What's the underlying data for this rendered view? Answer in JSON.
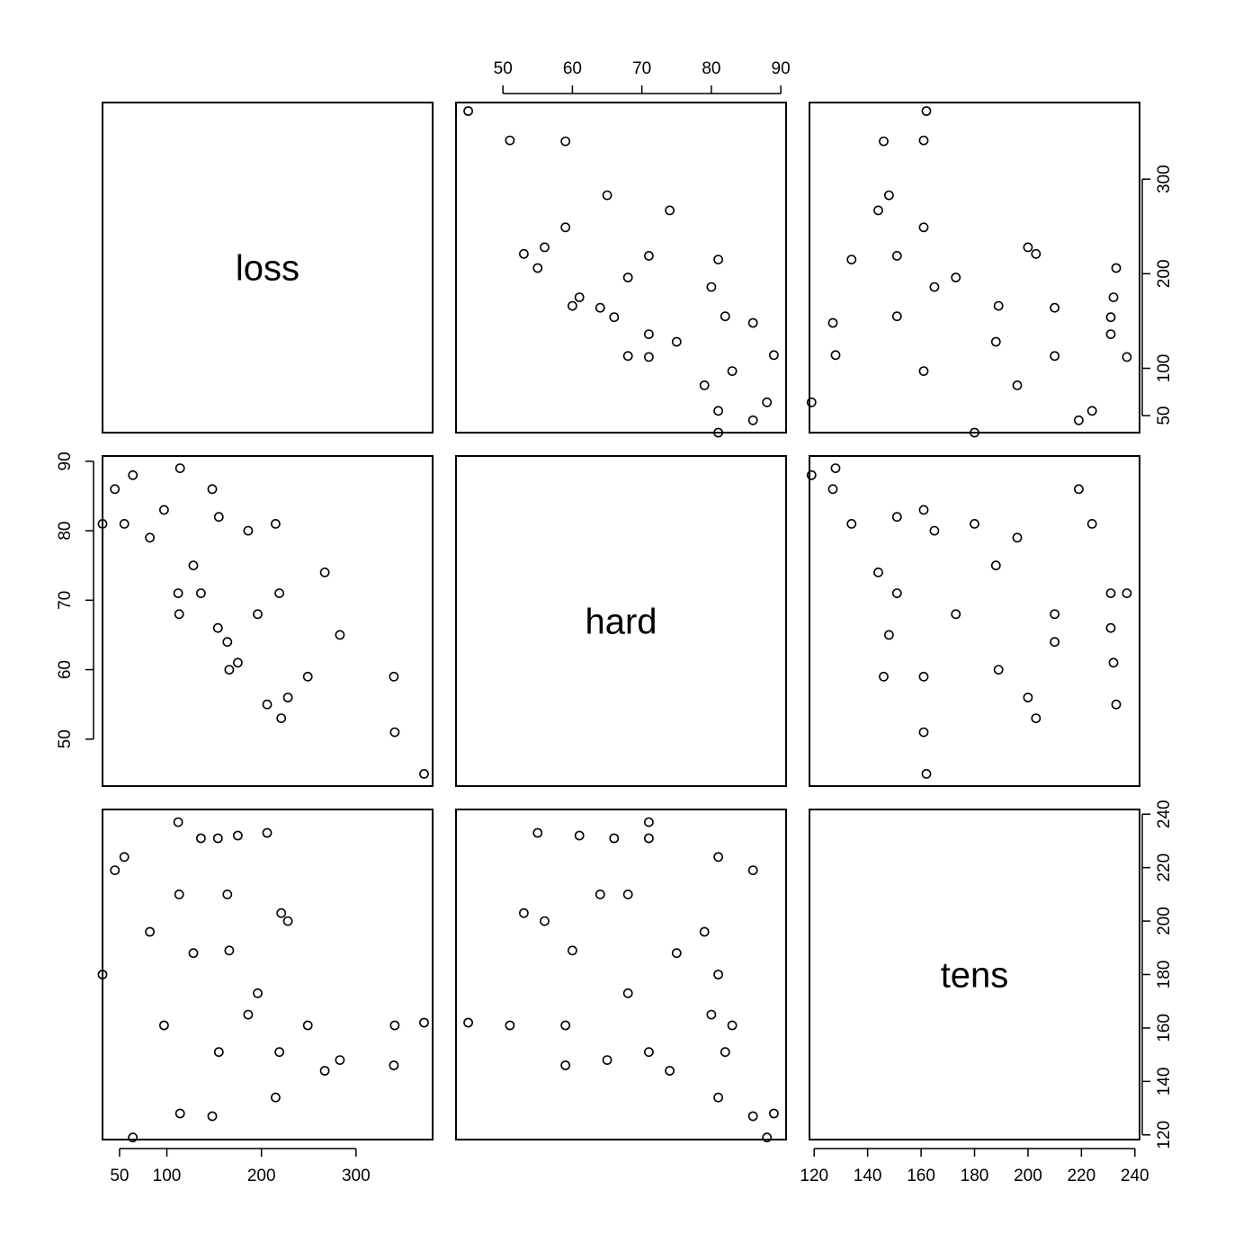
{
  "chart_data": {
    "type": "scatter",
    "variables": [
      "loss",
      "hard",
      "tens"
    ],
    "ticks": {
      "loss": [
        50,
        100,
        200,
        300
      ],
      "hard": [
        50,
        60,
        70,
        80,
        90
      ],
      "tens": [
        120,
        140,
        160,
        180,
        200,
        220,
        240
      ]
    },
    "ranges": {
      "loss": [
        32,
        381
      ],
      "hard": [
        43.24,
        90.76
      ],
      "tens": [
        118.24,
        241.76
      ]
    },
    "observations": {
      "loss": [
        372,
        206,
        175,
        154,
        136,
        112,
        55,
        45,
        221,
        166,
        164,
        113,
        82,
        32,
        228,
        196,
        128,
        97,
        64,
        249,
        219,
        186,
        155,
        114,
        341,
        340,
        283,
        267,
        215,
        148
      ],
      "hard": [
        45,
        55,
        61,
        66,
        71,
        71,
        81,
        86,
        53,
        60,
        64,
        68,
        79,
        81,
        56,
        68,
        75,
        83,
        88,
        59,
        71,
        80,
        82,
        89,
        51,
        59,
        65,
        74,
        81,
        86
      ],
      "tens": [
        162,
        233,
        232,
        231,
        231,
        237,
        224,
        219,
        203,
        189,
        210,
        210,
        196,
        180,
        200,
        173,
        188,
        161,
        119,
        161,
        151,
        165,
        151,
        128,
        161,
        146,
        148,
        144,
        134,
        127
      ]
    }
  }
}
